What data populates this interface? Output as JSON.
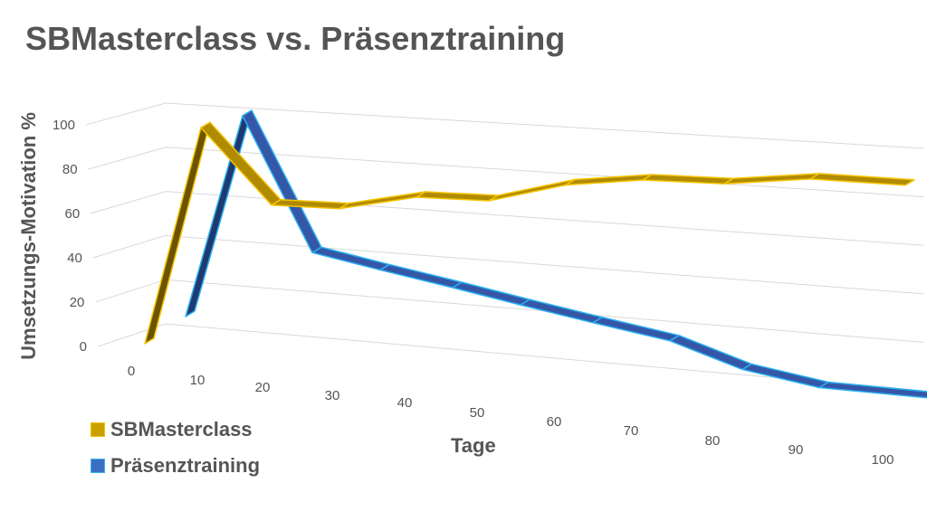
{
  "chart_data": {
    "type": "line",
    "title": "SBMasterclass vs. Präsenztraining",
    "xlabel": "Tage",
    "ylabel": "Umsetzungs-Motivation %",
    "x": [
      "0",
      "10",
      "20",
      "30",
      "40",
      "50",
      "60",
      "70",
      "80",
      "90",
      "100"
    ],
    "yticks": [
      "0",
      "20",
      "40",
      "60",
      "80",
      "100"
    ],
    "ylim": [
      0,
      100
    ],
    "grid": true,
    "legend": "bottom-left",
    "series": [
      {
        "name": "SBMasterclass",
        "color": "#c9a000",
        "values": [
          0,
          100,
          65,
          64,
          70,
          69,
          77,
          80,
          79,
          82,
          80
        ]
      },
      {
        "name": "Präsenztraining",
        "color": "#3b6fc4",
        "values": [
          5,
          100,
          40,
          35,
          30,
          25,
          20,
          15,
          5,
          0,
          0
        ]
      }
    ]
  }
}
